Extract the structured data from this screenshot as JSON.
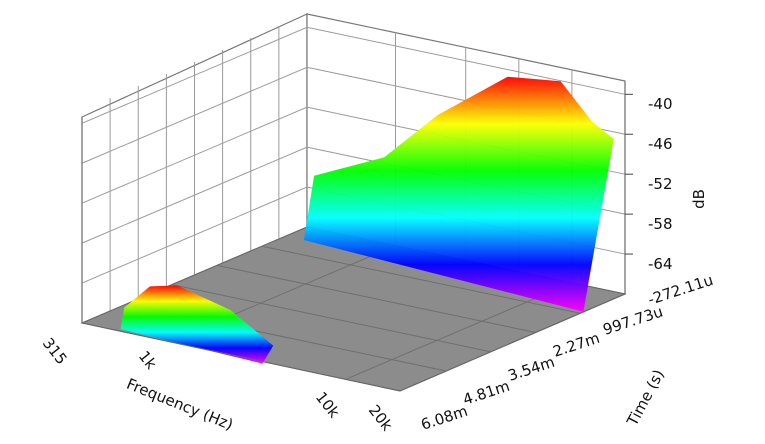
{
  "chart_data": {
    "type": "surface3d",
    "title": "",
    "xlabel": "Frequency (Hz)",
    "ylabel": "Time (s)",
    "zlabel": "dB",
    "x_scale": "log",
    "x_ticks": [
      "315",
      "1k",
      "10k",
      "20k"
    ],
    "y_ticks": [
      "-272.11u",
      "997.73u",
      "2.27m",
      "3.54m",
      "4.81m",
      "6.08m"
    ],
    "z_ticks": [
      "-40",
      "-46",
      "-52",
      "-58",
      "-64"
    ],
    "z_range": [
      -70,
      -38
    ],
    "colormap": [
      "#ff00ff",
      "#0000ff",
      "#00ffff",
      "#00ff00",
      "#ffff00",
      "#ff0000"
    ],
    "floor_color": "#8c8c8c",
    "grid": true,
    "series": [
      {
        "time": "-272.11u",
        "x": [
          400,
          1000,
          2000,
          5000,
          10000,
          15000,
          20000
        ],
        "z": [
          -61,
          -56,
          -48,
          -40,
          -39,
          -44,
          -46
        ]
      },
      {
        "time": "6.08m",
        "x": [
          500,
          700,
          1000,
          2000,
          3500
        ],
        "z": [
          -67,
          -63,
          -62,
          -64,
          -68
        ]
      }
    ]
  }
}
